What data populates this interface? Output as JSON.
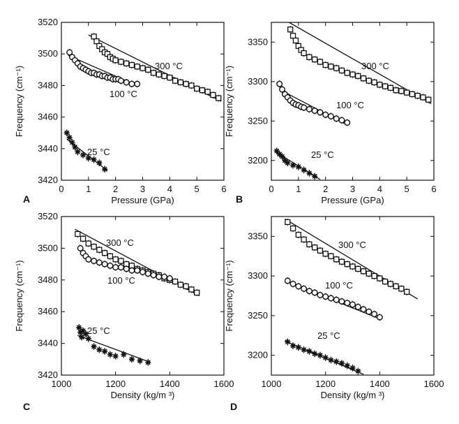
{
  "chart_data": [
    {
      "panel_label": "A",
      "type": "scatter",
      "xlabel": "Pressure (GPa)",
      "ylabel": "Frequency (cm⁻¹)",
      "xlim": [
        0,
        6
      ],
      "ylim": [
        3420,
        3520
      ],
      "xticks": [
        "0",
        "1",
        "2",
        "3",
        "4",
        "5",
        "6"
      ],
      "yticks": [
        "3420",
        "3440",
        "3460",
        "3480",
        "3500",
        "3520"
      ],
      "series": [
        {
          "name": "300 °C",
          "x": [
            1.2,
            1.3,
            1.4,
            1.5,
            1.6,
            1.7,
            1.8,
            1.9,
            2.0,
            2.2,
            2.4,
            2.6,
            2.8,
            3.0,
            3.2,
            3.4,
            3.6,
            3.8,
            4.0,
            4.2,
            4.4,
            4.6,
            4.8,
            5.0,
            5.2,
            5.4,
            5.6,
            5.8
          ],
          "y": [
            3511,
            3508,
            3505,
            3503,
            3501,
            3500,
            3498,
            3497,
            3496,
            3495,
            3494,
            3493,
            3492,
            3491,
            3490,
            3488,
            3487,
            3486,
            3485,
            3483,
            3482,
            3481,
            3480,
            3478,
            3477,
            3476,
            3474,
            3472
          ],
          "fit": [
            [
              1.0,
              3512
            ],
            [
              5.9,
              3470
            ]
          ]
        },
        {
          "name": "100 °C",
          "x": [
            0.3,
            0.4,
            0.5,
            0.6,
            0.7,
            0.8,
            0.9,
            1.0,
            1.1,
            1.2,
            1.3,
            1.4,
            1.5,
            1.6,
            1.7,
            1.8,
            1.9,
            2.0,
            2.1,
            2.2,
            2.4,
            2.6,
            2.8
          ],
          "y": [
            3501,
            3498,
            3496,
            3494,
            3492,
            3491,
            3490,
            3489,
            3488,
            3488,
            3487,
            3487,
            3486,
            3486,
            3485,
            3485,
            3484,
            3484,
            3484,
            3483,
            3482,
            3481,
            3481
          ],
          "fit": [
            [
              0.25,
              3499
            ],
            [
              2.8,
              3480
            ]
          ]
        },
        {
          "name": "25 °C",
          "x": [
            0.2,
            0.3,
            0.4,
            0.5,
            0.6,
            0.8,
            1.0,
            1.2,
            1.4,
            1.6
          ],
          "y": [
            3450,
            3447,
            3444,
            3441,
            3438,
            3436,
            3434,
            3433,
            3431,
            3427
          ],
          "fit": [
            [
              0.2,
              3446
            ],
            [
              1.7,
              3426
            ]
          ]
        }
      ]
    },
    {
      "panel_label": "B",
      "type": "scatter",
      "xlabel": "Pressure (GPa)",
      "ylabel": "Frequency (cm⁻¹)",
      "xlim": [
        0,
        6
      ],
      "ylim": [
        3175,
        3375
      ],
      "xticks": [
        "0",
        "1",
        "2",
        "3",
        "4",
        "5",
        "6"
      ],
      "yticks": [
        "3200",
        "3250",
        "3300",
        "3350"
      ],
      "series": [
        {
          "name": "300 °C",
          "x": [
            0.7,
            0.8,
            0.9,
            1.0,
            1.1,
            1.2,
            1.4,
            1.6,
            1.8,
            2.0,
            2.2,
            2.4,
            2.6,
            2.8,
            3.0,
            3.2,
            3.4,
            3.6,
            3.8,
            4.0,
            4.2,
            4.4,
            4.6,
            4.8,
            5.0,
            5.2,
            5.4,
            5.6,
            5.8
          ],
          "y": [
            3366,
            3358,
            3352,
            3345,
            3340,
            3336,
            3331,
            3328,
            3325,
            3321,
            3319,
            3317,
            3314,
            3311,
            3309,
            3307,
            3304,
            3301,
            3299,
            3296,
            3294,
            3292,
            3289,
            3288,
            3286,
            3284,
            3282,
            3280,
            3277
          ],
          "fit": [
            [
              0.65,
              3375
            ],
            [
              5.9,
              3272
            ]
          ]
        },
        {
          "name": "100 °C",
          "x": [
            0.3,
            0.4,
            0.5,
            0.6,
            0.7,
            0.8,
            0.9,
            1.0,
            1.1,
            1.2,
            1.4,
            1.6,
            1.8,
            2.0,
            2.2,
            2.4,
            2.6,
            2.8
          ],
          "y": [
            3297,
            3290,
            3284,
            3280,
            3276,
            3273,
            3271,
            3270,
            3268,
            3267,
            3265,
            3263,
            3261,
            3258,
            3256,
            3253,
            3251,
            3248
          ],
          "fit": [
            [
              0.3,
              3290
            ],
            [
              2.8,
              3245
            ]
          ]
        },
        {
          "name": "25 °C",
          "x": [
            0.2,
            0.3,
            0.4,
            0.5,
            0.6,
            0.8,
            1.0,
            1.2,
            1.4,
            1.6
          ],
          "y": [
            3212,
            3208,
            3205,
            3200,
            3197,
            3194,
            3192,
            3188,
            3184,
            3180
          ],
          "fit": [
            [
              0.2,
              3210
            ],
            [
              1.8,
              3176
            ]
          ]
        }
      ]
    },
    {
      "panel_label": "C",
      "type": "scatter",
      "xlabel": "Density (kg/m ³)",
      "ylabel": "Frequency (cm⁻¹)",
      "xlim": [
        1000,
        1600
      ],
      "ylim": [
        3420,
        3520
      ],
      "xticks": [
        "1000",
        "1200",
        "1400",
        "1600"
      ],
      "yticks": [
        "3420",
        "3440",
        "3460",
        "3480",
        "3500",
        "3520"
      ],
      "series": [
        {
          "name": "300 °C",
          "x": [
            1060,
            1080,
            1100,
            1120,
            1140,
            1160,
            1180,
            1200,
            1220,
            1240,
            1260,
            1280,
            1300,
            1320,
            1340,
            1360,
            1380,
            1400,
            1420,
            1440,
            1460,
            1480,
            1500
          ],
          "y": [
            3509,
            3506,
            3503,
            3501,
            3499,
            3497,
            3495,
            3493,
            3492,
            3490,
            3489,
            3487,
            3486,
            3485,
            3484,
            3483,
            3481,
            3480,
            3479,
            3477,
            3476,
            3474,
            3472
          ],
          "fit": [
            [
              1050,
              3512
            ],
            [
              1510,
              3470
            ]
          ]
        },
        {
          "name": "100 °C",
          "x": [
            1070,
            1080,
            1090,
            1100,
            1120,
            1140,
            1160,
            1180,
            1200,
            1220,
            1240,
            1260,
            1280,
            1300,
            1320,
            1340,
            1360,
            1380,
            1400
          ],
          "y": [
            3500,
            3497,
            3495,
            3493,
            3492,
            3491,
            3490,
            3489,
            3488,
            3488,
            3487,
            3486,
            3486,
            3485,
            3484,
            3483,
            3482,
            3482,
            3481
          ],
          "fit": []
        },
        {
          "name": "25 °C",
          "x": [
            1065,
            1070,
            1075,
            1080,
            1090,
            1100,
            1120,
            1140,
            1160,
            1180,
            1200,
            1230,
            1260,
            1290,
            1320
          ],
          "y": [
            3450,
            3447,
            3444,
            3448,
            3446,
            3443,
            3438,
            3436,
            3435,
            3433,
            3432,
            3433,
            3430,
            3429,
            3428
          ],
          "fit": [
            [
              1060,
              3445
            ],
            [
              1330,
              3428
            ]
          ]
        }
      ]
    },
    {
      "panel_label": "D",
      "type": "scatter",
      "xlabel": "Density (kg/m ³)",
      "ylabel": "Frequency (cm⁻¹)",
      "xlim": [
        1000,
        1600
      ],
      "ylim": [
        3175,
        3375
      ],
      "xticks": [
        "1000",
        "1200",
        "1400",
        "1600"
      ],
      "yticks": [
        "3200",
        "3250",
        "3300",
        "3350"
      ],
      "series": [
        {
          "name": "300 °C",
          "x": [
            1060,
            1080,
            1100,
            1120,
            1140,
            1160,
            1180,
            1200,
            1220,
            1240,
            1260,
            1280,
            1300,
            1320,
            1340,
            1360,
            1380,
            1400,
            1420,
            1440,
            1460,
            1480,
            1500
          ],
          "y": [
            3368,
            3360,
            3352,
            3346,
            3340,
            3336,
            3332,
            3328,
            3325,
            3321,
            3318,
            3315,
            3312,
            3309,
            3306,
            3303,
            3300,
            3297,
            3293,
            3290,
            3287,
            3284,
            3280
          ],
          "fit": [
            [
              1050,
              3372
            ],
            [
              1540,
              3271
            ]
          ]
        },
        {
          "name": "100 °C",
          "x": [
            1060,
            1080,
            1100,
            1120,
            1140,
            1160,
            1180,
            1200,
            1220,
            1240,
            1260,
            1280,
            1300,
            1320,
            1340,
            1360,
            1380,
            1400
          ],
          "y": [
            3294,
            3290,
            3287,
            3284,
            3281,
            3279,
            3276,
            3274,
            3272,
            3270,
            3268,
            3266,
            3264,
            3261,
            3258,
            3255,
            3252,
            3248
          ],
          "fit": [
            [
              1050,
              3294
            ],
            [
              1400,
              3246
            ]
          ]
        },
        {
          "name": "25 °C",
          "x": [
            1060,
            1080,
            1100,
            1120,
            1140,
            1160,
            1180,
            1200,
            1220,
            1240,
            1260,
            1280,
            1300,
            1320
          ],
          "y": [
            3217,
            3212,
            3210,
            3207,
            3205,
            3202,
            3200,
            3197,
            3194,
            3192,
            3190,
            3187,
            3184,
            3180
          ],
          "fit": [
            [
              1050,
              3218
            ],
            [
              1340,
              3176
            ]
          ]
        }
      ]
    }
  ]
}
